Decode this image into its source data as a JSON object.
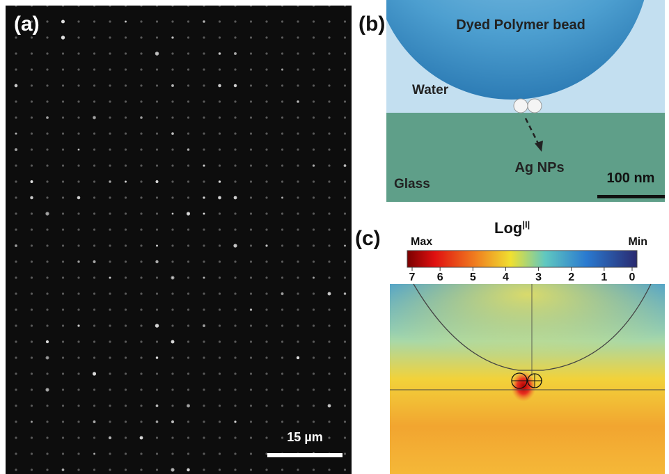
{
  "panel_a": {
    "label": "(a)",
    "scale_bar": "15 µm"
  },
  "panel_b": {
    "label": "(b)",
    "bead": "Dyed Polymer bead",
    "water": "Water",
    "particles": "Ag NPs",
    "glass": "Glass",
    "scale_bar": "100 nm"
  },
  "panel_c": {
    "label": "(c)",
    "colorbar": {
      "title": "Log",
      "title_sup": "|I|",
      "max": "Max",
      "min": "Min",
      "ticks": [
        7,
        6,
        5,
        4,
        3,
        2,
        1,
        0
      ]
    }
  }
}
